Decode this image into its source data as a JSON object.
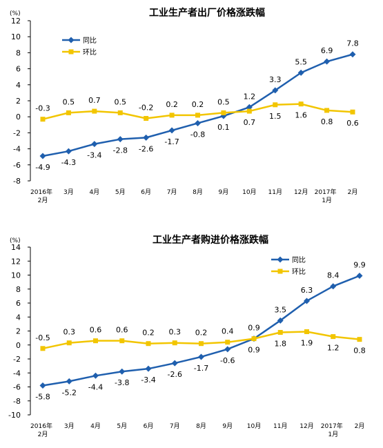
{
  "chart_data": [
    {
      "type": "line",
      "title": "工业生产者出厂价格涨跌幅",
      "unit_label": "(%)",
      "ylim": [
        -8,
        12
      ],
      "y_ticks": [
        "12",
        "10",
        "8",
        "6",
        "4",
        "2",
        "0",
        "-2",
        "-4",
        "-6",
        "-8"
      ],
      "categories": [
        [
          "2016年",
          "2月"
        ],
        [
          "3月"
        ],
        [
          "4月"
        ],
        [
          "5月"
        ],
        [
          "6月"
        ],
        [
          "7月"
        ],
        [
          "8月"
        ],
        [
          "9月"
        ],
        [
          "10月"
        ],
        [
          "11月"
        ],
        [
          "12月"
        ],
        [
          "2017年",
          "1月"
        ],
        [
          "2月"
        ]
      ],
      "legend_position": "top-left",
      "series": [
        {
          "name": "同比",
          "color": "#1f5fae",
          "marker": "diamond",
          "values": [
            -4.9,
            -4.3,
            -3.4,
            -2.8,
            -2.6,
            -1.7,
            -0.8,
            0.1,
            1.2,
            3.3,
            5.5,
            6.9,
            7.8
          ],
          "labels": [
            "-4.9",
            "-4.3",
            "-3.4",
            "-2.8",
            "-2.6",
            "-1.7",
            "-0.8",
            "0.1",
            "1.2",
            "3.3",
            "5.5",
            "6.9",
            "7.8"
          ],
          "label_side": [
            "below",
            "below",
            "below",
            "below",
            "below",
            "below",
            "below",
            "below",
            "above",
            "above",
            "above",
            "above",
            "above"
          ]
        },
        {
          "name": "环比",
          "color": "#f2c500",
          "marker": "square",
          "values": [
            -0.3,
            0.5,
            0.7,
            0.5,
            -0.2,
            0.2,
            0.2,
            0.5,
            0.7,
            1.5,
            1.6,
            0.8,
            0.6
          ],
          "labels": [
            "-0.3",
            "0.5",
            "0.7",
            "0.5",
            "-0.2",
            "0.2",
            "0.2",
            "0.5",
            "0.7",
            "1.5",
            "1.6",
            "0.8",
            "0.6"
          ],
          "label_side": [
            "above",
            "above",
            "above",
            "above",
            "above",
            "above",
            "above",
            "above",
            "below",
            "below",
            "below",
            "below",
            "below"
          ]
        }
      ]
    },
    {
      "type": "line",
      "title": "工业生产者购进价格涨跌幅",
      "unit_label": "(%)",
      "ylim": [
        -10,
        14
      ],
      "y_ticks": [
        "14",
        "12",
        "10",
        "8",
        "6",
        "4",
        "2",
        "0",
        "-2",
        "-4",
        "-6",
        "-8",
        "-10"
      ],
      "categories": [
        [
          "2016年",
          "2月"
        ],
        [
          "3月"
        ],
        [
          "4月"
        ],
        [
          "5月"
        ],
        [
          "6月"
        ],
        [
          "7月"
        ],
        [
          "8月"
        ],
        [
          "9月"
        ],
        [
          "10月"
        ],
        [
          "11月"
        ],
        [
          "12月"
        ],
        [
          "2017年",
          "1月"
        ],
        [
          "2月"
        ]
      ],
      "legend_position": "top-right",
      "series": [
        {
          "name": "同比",
          "color": "#1f5fae",
          "marker": "diamond",
          "values": [
            -5.8,
            -5.2,
            -4.4,
            -3.8,
            -3.4,
            -2.6,
            -1.7,
            -0.6,
            0.9,
            3.5,
            6.3,
            8.4,
            9.9
          ],
          "labels": [
            "-5.8",
            "-5.2",
            "-4.4",
            "-3.8",
            "-3.4",
            "-2.6",
            "-1.7",
            "-0.6",
            "0.9",
            "3.5",
            "6.3",
            "8.4",
            "9.9"
          ],
          "label_side": [
            "below",
            "below",
            "below",
            "below",
            "below",
            "below",
            "below",
            "below",
            "above",
            "above",
            "above",
            "above",
            "above"
          ]
        },
        {
          "name": "环比",
          "color": "#f2c500",
          "marker": "square",
          "values": [
            -0.5,
            0.3,
            0.6,
            0.6,
            0.2,
            0.3,
            0.2,
            0.4,
            0.9,
            1.8,
            1.9,
            1.2,
            0.8
          ],
          "labels": [
            "-0.5",
            "0.3",
            "0.6",
            "0.6",
            "0.2",
            "0.3",
            "0.2",
            "0.4",
            "0.9",
            "1.8",
            "1.9",
            "1.2",
            "0.8"
          ],
          "label_side": [
            "above",
            "above",
            "above",
            "above",
            "above",
            "above",
            "above",
            "above",
            "below",
            "below",
            "below",
            "below",
            "below"
          ]
        }
      ]
    }
  ]
}
